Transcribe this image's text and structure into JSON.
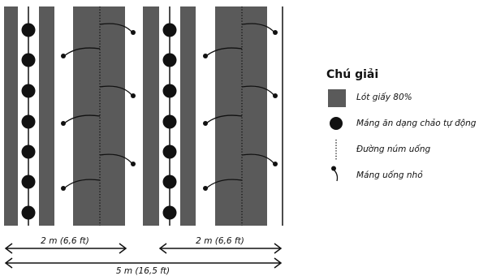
{
  "legend": {
    "title": "Chú giải",
    "items": [
      {
        "label": "Lót giấy 80%",
        "icon": "gray-rectangle"
      },
      {
        "label": "Máng ăn dạng chảo tự động",
        "icon": "black-dot"
      },
      {
        "label": "Đường núm uống",
        "icon": "dotted-line"
      },
      {
        "label": "Máng uống nhỏ",
        "icon": "hook-cup"
      }
    ]
  },
  "dimensions": {
    "left_section": "2 m (6,6 ft)",
    "right_section": "2 m (6,6 ft)",
    "total": "5 m (16,5 ft)"
  },
  "colors": {
    "paper": "#5a5a5a",
    "line": "#111111",
    "background": "#ffffff"
  }
}
